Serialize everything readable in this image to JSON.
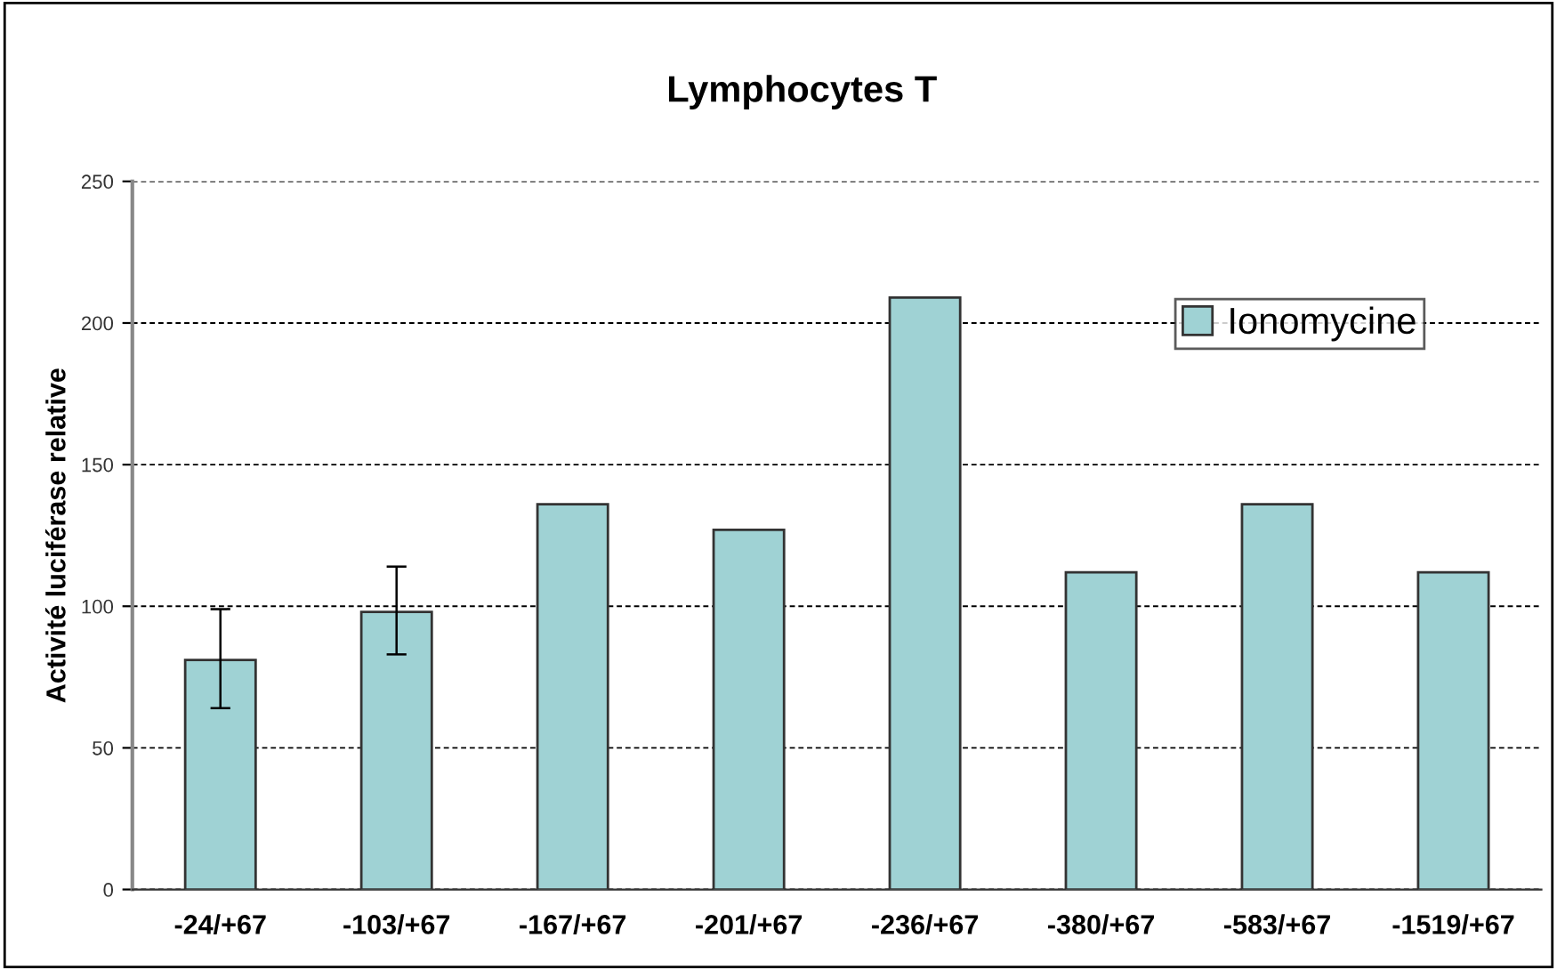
{
  "chart_data": {
    "type": "bar",
    "title": "Lymphocytes T",
    "ylabel": "Activité luciférase relative",
    "categories": [
      "-24/+67",
      "-103/+67",
      "-167/+67",
      "-201/+67",
      "-236/+67",
      "-380/+67",
      "-583/+67",
      "-1519/+67"
    ],
    "series": [
      {
        "name": "Ionomycine",
        "color": "#9fd2d4",
        "values": [
          81,
          98,
          136,
          127,
          209,
          112,
          136,
          112
        ],
        "errors": [
          [
            64,
            99
          ],
          [
            83,
            114
          ],
          null,
          null,
          null,
          null,
          null,
          null
        ]
      }
    ],
    "ylim": [
      0,
      250
    ],
    "yticks": [
      0,
      50,
      100,
      150,
      200,
      250
    ],
    "grid": "y",
    "legend": "top right"
  }
}
